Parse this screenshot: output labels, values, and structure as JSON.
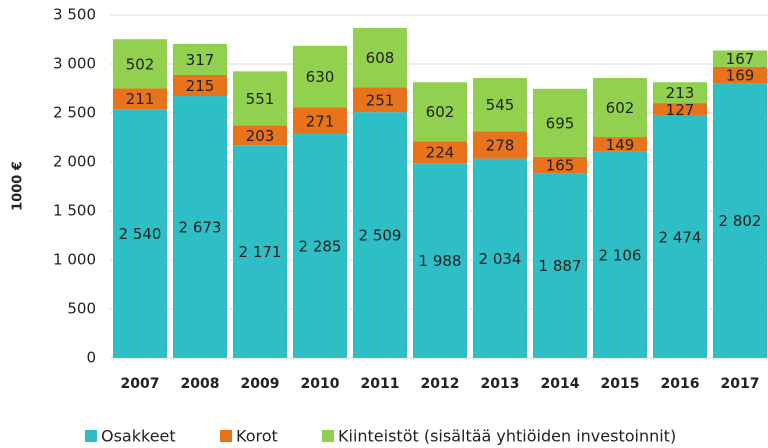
{
  "chart_data": {
    "type": "stacked_bar",
    "y_label": "1000 €",
    "categories": [
      "2007",
      "2008",
      "2009",
      "2010",
      "2011",
      "2012",
      "2013",
      "2014",
      "2015",
      "2016",
      "2017"
    ],
    "series": [
      {
        "name": "Osakkeet",
        "color": "#2ebfc6",
        "values": [
          2540,
          2673,
          2171,
          2285,
          2509,
          1988,
          2034,
          1887,
          2106,
          2474,
          2802
        ],
        "value_labels": [
          "2 540",
          "2 673",
          "2 171",
          "2 285",
          "2 509",
          "1 988",
          "2 034",
          "1 887",
          "2 106",
          "2 474",
          "2 802"
        ]
      },
      {
        "name": "Korot",
        "color": "#e8731a",
        "values": [
          211,
          215,
          203,
          271,
          251,
          224,
          278,
          165,
          149,
          127,
          169
        ]
      },
      {
        "name": "Kiinteistöt (sisältää yhtiöiden investoinnit)",
        "color": "#92d050",
        "values": [
          502,
          317,
          551,
          630,
          608,
          602,
          545,
          695,
          602,
          213,
          167
        ]
      }
    ],
    "ylim": [
      0,
      3500
    ],
    "yticks": [
      0,
      500,
      {
        "value": 1000,
        "label": "1 000"
      },
      {
        "value": 1500,
        "label": "1 500"
      },
      {
        "value": 2000,
        "label": "2 000"
      },
      {
        "value": 2500,
        "label": "2 500"
      },
      {
        "value": 3000,
        "label": "3 000"
      },
      {
        "value": 3500,
        "label": "3 500"
      }
    ],
    "grid": true
  }
}
